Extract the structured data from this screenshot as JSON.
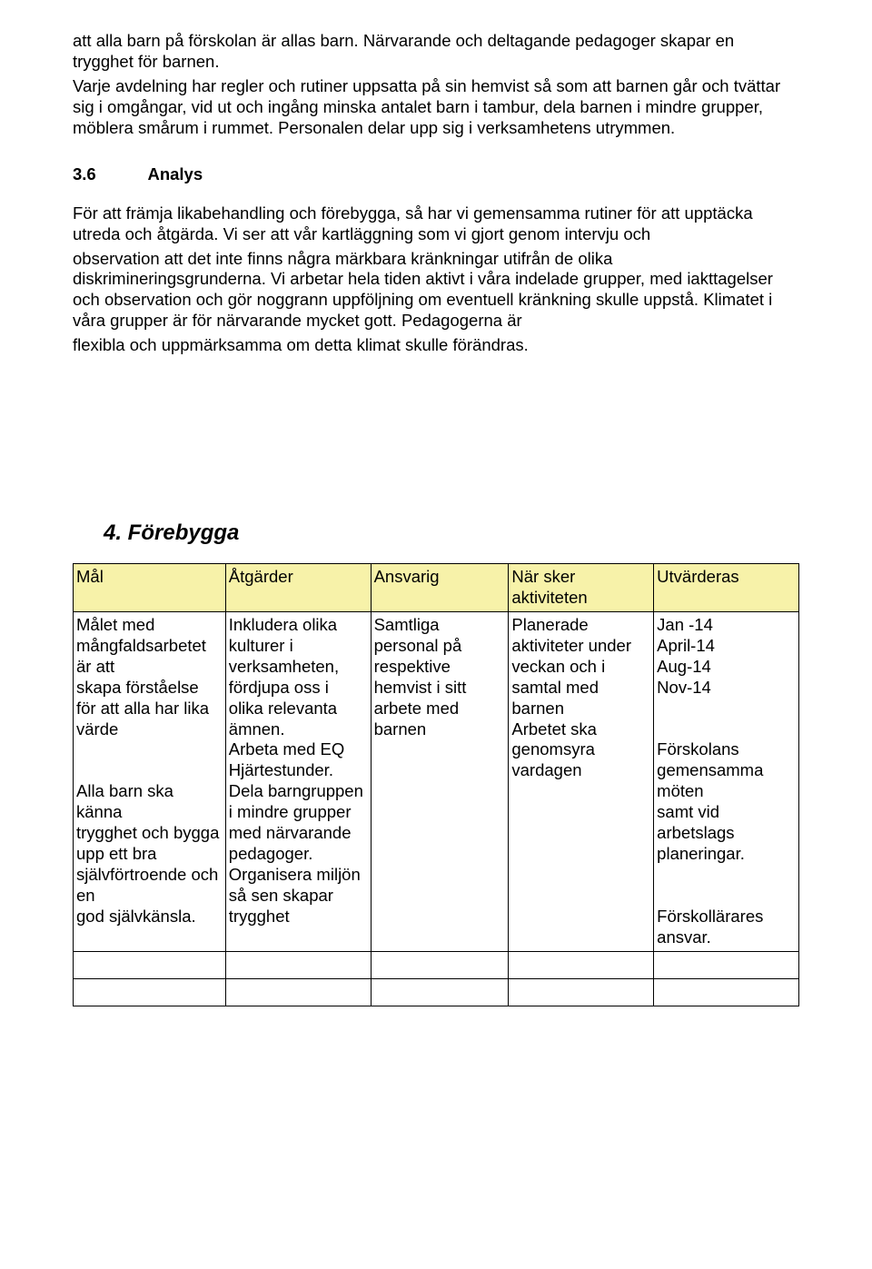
{
  "intro_p1": "att alla barn på förskolan är allas barn. Närvarande och deltagande pedagoger skapar en trygghet för barnen.",
  "intro_p2": "Varje avdelning har regler och rutiner uppsatta på sin hemvist så som att barnen går och tvättar sig i omgångar, vid ut och ingång minska antalet barn i tambur, dela barnen i mindre grupper, möblera smårum i rummet. Personalen delar upp sig i verksamhetens utrymmen.",
  "section": {
    "num": "3.6",
    "title": "Analys"
  },
  "analys_p1": "För att främja likabehandling och förebygga, så har vi gemensamma rutiner för att upptäcka utreda och åtgärda. Vi ser att vår kartläggning som vi gjort genom intervju och",
  "analys_p2": "observation att det inte finns några märkbara kränkningar utifrån de olika diskrimineringsgrunderna. Vi arbetar hela tiden aktivt i våra indelade grupper, med iakttagelser och observation och gör noggrann uppföljning om eventuell kränkning skulle uppstå. Klimatet i våra grupper är för närvarande mycket gott. Pedagogerna är",
  "analys_p3": "flexibla och uppmärksamma om detta klimat skulle förändras.",
  "heading4": "4. Förebygga",
  "table": {
    "headers": [
      "Mål",
      "Åtgärder",
      "Ansvarig",
      "När sker\naktiviteten",
      "Utvärderas"
    ],
    "row": {
      "mal": "Målet med mångfaldsarbetet är att\nskapa förståelse för att alla har lika värde\n\nAlla barn ska känna\ntrygghet och bygga upp ett bra självförtroende och en\ngod självkänsla.",
      "atgarder": "Inkludera olika kulturer i verksamheten, fördjupa oss i olika relevanta ämnen.\nArbeta med EQ Hjärtestunder.\nDela barngruppen i mindre grupper med närvarande pedagoger.\nOrganisera miljön så sen skapar trygghet",
      "ansvarig": "Samtliga personal på respektive hemvist i sitt arbete med barnen",
      "nar": "Planerade aktiviteter under veckan och i samtal med barnen\nArbetet ska genomsyra vardagen",
      "utv": "Jan -14\nApril-14\nAug-14\nNov-14\n\nFörskolans gemensamma möten\nsamt vid arbetslags planeringar.\n\nFörskollärares ansvar."
    }
  }
}
